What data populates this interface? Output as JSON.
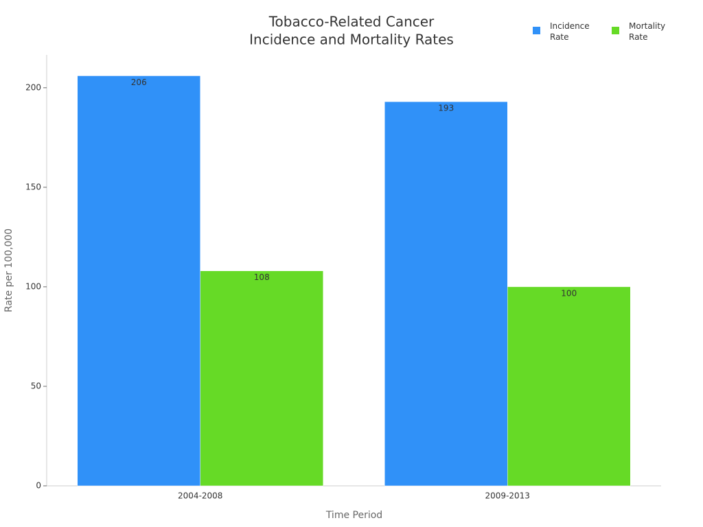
{
  "chart_data": {
    "type": "bar",
    "title": [
      "Tobacco-Related Cancer",
      "Incidence and Mortality Rates"
    ],
    "x_label": "Time Period",
    "y_label": "Rate per 100,000",
    "categories": [
      "2004-2008",
      "2009-2013"
    ],
    "series": [
      {
        "name": "Incidence Rate",
        "color": "#3091f8",
        "values": [
          206,
          193
        ]
      },
      {
        "name": "Mortality Rate",
        "color": "#66da26",
        "values": [
          108,
          100
        ]
      }
    ],
    "ylim": [
      0,
      216.5
    ],
    "yticks": [
      0,
      50,
      100,
      150,
      200
    ],
    "legend": "top-right",
    "grid": false
  }
}
